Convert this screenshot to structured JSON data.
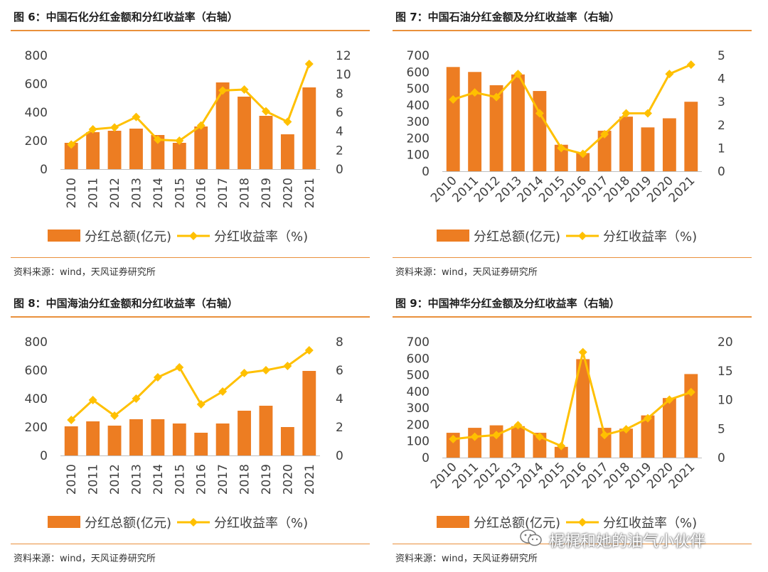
{
  "colors": {
    "bar": "#ed7d22",
    "line": "#ffc000",
    "rule": "#e9903b"
  },
  "legend": {
    "bar_label": "分红总额(亿元)",
    "line_label": "分红收益率（%)"
  },
  "watermark": {
    "text": "梶梶和她的油气小伙伴",
    "icon": "wechat-icon"
  },
  "panels": [
    {
      "title": "图 6：中国石化分红金额和分红收益率（右轴）",
      "source": "资料来源：wind，天风证券研究所"
    },
    {
      "title": "图 7：中国石油分红金额及分红收益率（右轴）",
      "source": "资料来源：wind，天风证券研究所"
    },
    {
      "title": "图 8：中国海油分红金额和分红收益率（右轴）",
      "source": "资料来源：wind，天风证券研究所"
    },
    {
      "title": "图 9：中国神华分红金额及分红收益率（右轴）",
      "source": "资料来源：wind，天风证券研究所"
    }
  ],
  "chart_data": [
    {
      "type": "bar",
      "categories": [
        "2010",
        "2011",
        "2012",
        "2013",
        "2014",
        "2015",
        "2016",
        "2017",
        "2018",
        "2019",
        "2020",
        "2021"
      ],
      "series": [
        {
          "name": "分红总额(亿元)",
          "type": "bar",
          "axis": "left",
          "values": [
            185,
            260,
            270,
            285,
            240,
            185,
            300,
            610,
            510,
            375,
            245,
            575
          ]
        },
        {
          "name": "分红收益率（%)",
          "type": "line",
          "axis": "right",
          "values": [
            2.6,
            4.2,
            4.4,
            5.5,
            3.1,
            3.0,
            4.6,
            8.3,
            8.4,
            6.1,
            5.0,
            11.1
          ]
        }
      ],
      "y_left": {
        "min": 0,
        "max": 800,
        "ticks": [
          "0",
          "200",
          "400",
          "600",
          "800"
        ]
      },
      "y_right": {
        "min": 0,
        "max": 12,
        "ticks": [
          "0",
          "2",
          "4",
          "6",
          "8",
          "10",
          "12"
        ]
      },
      "xlabel_rotation": "vertical",
      "grid": false,
      "legend": "bottom"
    },
    {
      "type": "bar",
      "categories": [
        "2010",
        "2011",
        "2012",
        "2013",
        "2014",
        "2015",
        "2016",
        "2017",
        "2018",
        "2019",
        "2020",
        "2021"
      ],
      "series": [
        {
          "name": "分红总额(亿元)",
          "type": "bar",
          "axis": "left",
          "values": [
            630,
            600,
            520,
            585,
            485,
            160,
            110,
            245,
            330,
            265,
            320,
            420
          ]
        },
        {
          "name": "分红收益率（%)",
          "type": "line",
          "axis": "right",
          "values": [
            3.1,
            3.4,
            3.2,
            4.2,
            2.5,
            1.0,
            0.75,
            1.6,
            2.5,
            2.5,
            4.2,
            4.6
          ]
        }
      ],
      "y_left": {
        "min": 0,
        "max": 700,
        "ticks": [
          "0",
          "100",
          "200",
          "300",
          "400",
          "500",
          "600",
          "700"
        ]
      },
      "y_right": {
        "min": 0,
        "max": 5,
        "ticks": [
          "0",
          "1",
          "2",
          "3",
          "4",
          "5"
        ]
      },
      "xlabel_rotation": "diagonal",
      "grid": false,
      "legend": "bottom"
    },
    {
      "type": "bar",
      "categories": [
        "2010",
        "2011",
        "2012",
        "2013",
        "2014",
        "2015",
        "2016",
        "2017",
        "2018",
        "2019",
        "2020",
        "2021"
      ],
      "series": [
        {
          "name": "分红总额(亿元)",
          "type": "bar",
          "axis": "left",
          "values": [
            205,
            240,
            210,
            255,
            255,
            225,
            160,
            225,
            315,
            350,
            200,
            595
          ]
        },
        {
          "name": "分红收益率（%)",
          "type": "line",
          "axis": "right",
          "values": [
            2.5,
            3.9,
            2.8,
            4.0,
            5.5,
            6.2,
            3.6,
            4.5,
            5.8,
            6.0,
            6.3,
            7.4
          ]
        }
      ],
      "y_left": {
        "min": 0,
        "max": 800,
        "ticks": [
          "0",
          "200",
          "400",
          "600",
          "800"
        ]
      },
      "y_right": {
        "min": 0,
        "max": 8,
        "ticks": [
          "0",
          "2",
          "4",
          "6",
          "8"
        ]
      },
      "xlabel_rotation": "vertical",
      "grid": false,
      "legend": "bottom"
    },
    {
      "type": "bar",
      "categories": [
        "2010",
        "2011",
        "2012",
        "2013",
        "2014",
        "2015",
        "2016",
        "2017",
        "2018",
        "2019",
        "2020",
        "2021"
      ],
      "series": [
        {
          "name": "分红总额(亿元)",
          "type": "bar",
          "axis": "left",
          "values": [
            150,
            180,
            195,
            190,
            150,
            65,
            595,
            180,
            175,
            255,
            360,
            505
          ]
        },
        {
          "name": "分红收益率（%)",
          "type": "line",
          "axis": "right",
          "values": [
            3.2,
            3.6,
            3.9,
            5.6,
            3.6,
            2.0,
            18.2,
            3.9,
            4.9,
            6.8,
            10.0,
            11.3
          ]
        }
      ],
      "y_left": {
        "min": 0,
        "max": 700,
        "ticks": [
          "0",
          "100",
          "200",
          "300",
          "400",
          "500",
          "600",
          "700"
        ]
      },
      "y_right": {
        "min": 0,
        "max": 20,
        "ticks": [
          "0",
          "5",
          "10",
          "15",
          "20"
        ]
      },
      "xlabel_rotation": "diagonal",
      "grid": false,
      "legend": "bottom"
    }
  ]
}
